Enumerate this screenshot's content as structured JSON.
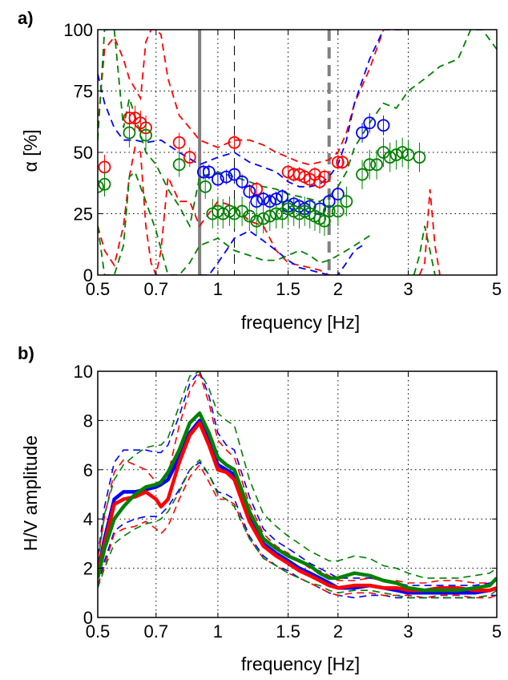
{
  "chart_data": [
    {
      "panel_label": "a)",
      "type": "line",
      "xscale": "log",
      "xlim": [
        0.5,
        5
      ],
      "xticks": [
        0.5,
        0.7,
        1,
        1.5,
        2,
        3,
        5
      ],
      "xtick_labels": [
        "0.5",
        "0.7",
        "1",
        "1.5",
        "2",
        "3",
        "5"
      ],
      "ylim": [
        0,
        100
      ],
      "yticks": [
        0,
        25,
        50,
        75,
        100
      ],
      "ytick_labels": [
        "0",
        "25",
        "50",
        "75",
        "100"
      ],
      "xlabel": "frequency [Hz]",
      "ylabel": "α [%]",
      "grid": true,
      "colors": {
        "red": "#ff0000",
        "blue": "#0000ff",
        "green": "#008000",
        "grey": "#808080"
      },
      "vertical_lines": [
        {
          "x": 0.9,
          "style": "solid",
          "color": "#808080"
        },
        {
          "x": 1.1,
          "style": "dashed",
          "color": "#000000"
        },
        {
          "x": 1.9,
          "style": "dashed",
          "color": "#808080"
        }
      ],
      "series": [
        {
          "color": "red",
          "marker": "circle",
          "x": [
            0.52,
            0.6,
            0.62,
            0.64,
            0.66,
            0.8,
            0.85,
            1.1,
            1.25,
            1.5,
            1.55,
            1.6,
            1.65,
            1.7,
            1.75,
            1.8,
            1.85,
            2.0,
            2.05
          ],
          "y": [
            44,
            64,
            64,
            62,
            60,
            54,
            48,
            54,
            35,
            42,
            41,
            41,
            40,
            39,
            41,
            38,
            40,
            46,
            46
          ],
          "err": [
            5,
            5,
            5,
            5,
            5,
            4,
            4,
            3,
            3,
            3,
            3,
            3,
            3,
            3,
            3,
            3,
            3,
            3,
            3
          ]
        },
        {
          "color": "blue",
          "marker": "circle",
          "x": [
            0.92,
            0.95,
            1.0,
            1.05,
            1.1,
            1.15,
            1.2,
            1.25,
            1.3,
            1.35,
            1.4,
            1.45,
            1.5,
            1.55,
            1.6,
            1.65,
            1.7,
            1.8,
            1.9,
            2.0,
            2.3,
            2.4,
            2.6
          ],
          "y": [
            42,
            42,
            39,
            40,
            41,
            38,
            34,
            30,
            31,
            30,
            31,
            32,
            28,
            29,
            28,
            27,
            28,
            27,
            30,
            33,
            58,
            62,
            61
          ],
          "err": [
            3,
            3,
            3,
            3,
            3,
            3,
            3,
            3,
            3,
            3,
            3,
            3,
            3,
            3,
            3,
            3,
            3,
            3,
            3,
            3,
            4,
            4,
            4
          ]
        },
        {
          "color": "green",
          "marker": "circle",
          "x": [
            0.5,
            0.52,
            0.6,
            0.66,
            0.8,
            0.93,
            0.97,
            1.0,
            1.03,
            1.07,
            1.1,
            1.15,
            1.2,
            1.25,
            1.3,
            1.35,
            1.4,
            1.45,
            1.5,
            1.55,
            1.6,
            1.65,
            1.7,
            1.75,
            1.8,
            1.85,
            1.9,
            2.0,
            2.1,
            2.3,
            2.4,
            2.5,
            2.6,
            2.7,
            2.8,
            2.9,
            3.0,
            3.2
          ],
          "y": [
            36,
            37,
            58,
            57,
            45,
            36,
            25,
            26,
            25,
            26,
            25,
            26,
            24,
            22,
            23,
            24,
            25,
            25,
            27,
            26,
            25,
            26,
            25,
            24,
            23,
            22,
            26,
            26,
            30,
            41,
            45,
            45,
            50,
            48,
            49,
            50,
            49,
            48
          ],
          "err": [
            5,
            5,
            6,
            6,
            5,
            5,
            6,
            6,
            6,
            6,
            6,
            6,
            6,
            6,
            6,
            6,
            6,
            6,
            6,
            6,
            6,
            6,
            6,
            6,
            6,
            6,
            6,
            6,
            6,
            6,
            6,
            6,
            6,
            6,
            6,
            6,
            6,
            6
          ]
        }
      ],
      "dashed_envelopes": [
        {
          "color": "red",
          "x": [
            0.5,
            0.52,
            0.55,
            0.58,
            0.6,
            0.62,
            0.64,
            0.66,
            0.68,
            0.7,
            0.72,
            0.75,
            0.8,
            0.85,
            0.9,
            1.0,
            1.1,
            1.2,
            1.3,
            1.4,
            1.5,
            1.6,
            1.7,
            1.8,
            1.9,
            2.0,
            2.1,
            2.2,
            2.4,
            2.6,
            2.8,
            3.0
          ],
          "y": [
            60,
            92,
            97,
            88,
            80,
            76,
            72,
            95,
            100,
            100,
            98,
            80,
            65,
            60,
            55,
            52,
            55,
            55,
            53,
            50,
            48,
            46,
            45,
            46,
            47,
            50,
            58,
            70,
            84,
            100,
            100,
            100
          ]
        },
        {
          "color": "red",
          "x": [
            0.5,
            0.52,
            0.55,
            0.58,
            0.6,
            0.62,
            0.64,
            0.66,
            0.68,
            0.7,
            0.72,
            0.75,
            0.8,
            0.85,
            0.9,
            1.0,
            1.1,
            1.2,
            1.3,
            1.4,
            1.5,
            1.6,
            1.7,
            1.8,
            1.9,
            2.0,
            2.05
          ],
          "y": [
            20,
            10,
            4,
            20,
            40,
            52,
            50,
            20,
            5,
            0,
            10,
            40,
            30,
            30,
            20,
            30,
            28,
            22,
            20,
            10,
            5,
            4,
            3,
            2,
            0,
            0,
            0
          ]
        },
        {
          "color": "red",
          "x": [
            3.2,
            3.3,
            3.4,
            3.5,
            3.6
          ],
          "y": [
            0,
            5,
            35,
            12,
            0
          ]
        },
        {
          "color": "blue",
          "x": [
            0.5,
            0.52,
            0.55,
            0.58,
            0.62,
            0.66,
            0.72,
            0.8,
            0.9,
            1.0,
            1.1,
            1.2,
            1.3,
            1.4,
            1.5,
            1.6,
            1.7,
            1.8,
            1.9,
            2.0,
            2.1,
            2.2,
            2.4,
            2.6,
            2.8,
            3.0
          ],
          "y": [
            82,
            70,
            60,
            55,
            55,
            54,
            55,
            50,
            45,
            48,
            50,
            46,
            44,
            42,
            38,
            36,
            36,
            37,
            40,
            45,
            55,
            70,
            88,
            100,
            100,
            100
          ]
        },
        {
          "color": "blue",
          "x": [
            0.9,
            0.95,
            1.0,
            1.05,
            1.1,
            1.2,
            1.3,
            1.4,
            1.5,
            1.6,
            1.7,
            1.8,
            1.9,
            2.0,
            2.1,
            2.2,
            2.3
          ],
          "y": [
            0,
            0,
            5,
            10,
            15,
            18,
            14,
            10,
            6,
            3,
            2,
            1,
            0,
            0,
            5,
            10,
            12
          ]
        },
        {
          "color": "green",
          "x": [
            0.5,
            0.52,
            0.55,
            0.58,
            0.6,
            0.62,
            0.66,
            0.7,
            0.75,
            0.8,
            0.85,
            0.9,
            1.0,
            1.1,
            1.2,
            1.3,
            1.4,
            1.5,
            1.6,
            1.7,
            1.8,
            1.9,
            2.0,
            2.1,
            2.2,
            2.4,
            2.6,
            2.8,
            3.0,
            3.3,
            3.6,
            4.0,
            4.3,
            4.6,
            5.0
          ],
          "y": [
            55,
            100,
            100,
            60,
            72,
            65,
            50,
            45,
            35,
            28,
            20,
            40,
            42,
            40,
            38,
            36,
            35,
            33,
            32,
            31,
            30,
            32,
            36,
            42,
            52,
            62,
            70,
            68,
            75,
            80,
            85,
            88,
            100,
            100,
            92
          ]
        },
        {
          "color": "green",
          "x": [
            0.5,
            0.52,
            0.55,
            0.58,
            0.6,
            0.62,
            0.66,
            0.7,
            0.75,
            0.8,
            0.85,
            0.9,
            1.0,
            1.1,
            1.2,
            1.3,
            1.4,
            1.5,
            1.6,
            1.7,
            1.8,
            1.9,
            2.0,
            2.1,
            2.2,
            2.4
          ],
          "y": [
            20,
            0,
            0,
            12,
            40,
            42,
            30,
            18,
            0,
            0,
            5,
            12,
            15,
            10,
            8,
            6,
            6,
            8,
            10,
            8,
            5,
            6,
            8,
            10,
            12,
            16
          ]
        },
        {
          "color": "green",
          "x": [
            3.1,
            3.2,
            3.3,
            3.4,
            3.5
          ],
          "y": [
            0,
            8,
            20,
            10,
            0
          ]
        }
      ]
    },
    {
      "panel_label": "b)",
      "type": "line",
      "xscale": "log",
      "xlim": [
        0.5,
        5
      ],
      "xticks": [
        0.5,
        0.7,
        1,
        1.5,
        2,
        3,
        5
      ],
      "xtick_labels": [
        "0.5",
        "0.7",
        "1",
        "1.5",
        "2",
        "3",
        "5"
      ],
      "ylim": [
        0,
        10
      ],
      "yticks": [
        0,
        2,
        4,
        6,
        8,
        10
      ],
      "ytick_labels": [
        "0",
        "2",
        "4",
        "6",
        "8",
        "10"
      ],
      "xlabel": "frequency [Hz]",
      "ylabel": "H/V amplitude",
      "grid": true,
      "colors": {
        "red": "#ff0000",
        "blue": "#0000ff",
        "green": "#008000"
      },
      "x": [
        0.5,
        0.52,
        0.55,
        0.58,
        0.62,
        0.66,
        0.7,
        0.72,
        0.75,
        0.8,
        0.85,
        0.9,
        0.95,
        1.0,
        1.05,
        1.1,
        1.2,
        1.3,
        1.4,
        1.5,
        1.6,
        1.7,
        1.8,
        1.9,
        2.0,
        2.2,
        2.4,
        2.6,
        2.8,
        3.0,
        3.3,
        3.6,
        4.0,
        4.4,
        4.8,
        5.0
      ],
      "series": [
        {
          "color": "blue",
          "width": "thick",
          "y": [
            1.8,
            3.2,
            4.8,
            5.1,
            5.1,
            5.2,
            5.3,
            5.4,
            5.6,
            6.5,
            7.5,
            8.0,
            7.2,
            6.2,
            6.0,
            5.8,
            4.0,
            3.0,
            2.6,
            2.3,
            2.0,
            1.8,
            1.6,
            1.4,
            1.2,
            1.2,
            1.3,
            1.2,
            1.1,
            1.0,
            1.0,
            1.0,
            1.0,
            1.0,
            1.1,
            1.2
          ]
        },
        {
          "color": "red",
          "width": "thick",
          "y": [
            1.8,
            3.0,
            4.6,
            4.8,
            4.9,
            5.1,
            4.8,
            4.5,
            4.8,
            6.3,
            7.4,
            7.9,
            7.0,
            6.0,
            5.9,
            5.6,
            3.9,
            2.9,
            2.5,
            2.2,
            1.9,
            1.7,
            1.5,
            1.3,
            1.2,
            1.3,
            1.3,
            1.2,
            1.2,
            1.1,
            1.1,
            1.2,
            1.2,
            1.1,
            1.1,
            1.2
          ]
        },
        {
          "color": "green",
          "width": "thick",
          "y": [
            1.6,
            2.8,
            4.0,
            4.5,
            5.0,
            5.3,
            5.4,
            5.5,
            5.9,
            6.8,
            7.9,
            8.3,
            7.5,
            6.5,
            6.2,
            6.0,
            4.3,
            3.2,
            2.8,
            2.5,
            2.3,
            2.1,
            1.8,
            1.6,
            1.6,
            1.8,
            1.7,
            1.5,
            1.4,
            1.2,
            1.1,
            1.1,
            1.1,
            1.2,
            1.3,
            1.6
          ]
        },
        {
          "color": "blue",
          "width": "dashed",
          "y": [
            2.5,
            4.5,
            6.3,
            6.8,
            6.8,
            6.8,
            6.7,
            6.7,
            7.0,
            8.2,
            9.5,
            10.0,
            9.0,
            7.5,
            7.0,
            6.8,
            4.9,
            3.6,
            3.1,
            2.8,
            2.5,
            2.2,
            2.0,
            1.8,
            1.6,
            1.6,
            1.6,
            1.5,
            1.4,
            1.3,
            1.3,
            1.3,
            1.3,
            1.3,
            1.4,
            1.5
          ]
        },
        {
          "color": "blue",
          "width": "dashed",
          "y": [
            1.3,
            2.3,
            3.5,
            3.8,
            4.0,
            4.1,
            4.1,
            4.2,
            4.5,
            5.2,
            6.0,
            6.3,
            5.8,
            5.1,
            5.0,
            4.8,
            3.3,
            2.5,
            2.1,
            1.9,
            1.6,
            1.4,
            1.2,
            1.0,
            0.9,
            0.8,
            0.9,
            0.9,
            0.8,
            0.8,
            0.8,
            0.8,
            0.8,
            0.8,
            0.9,
            0.9
          ]
        },
        {
          "color": "red",
          "width": "dashed",
          "y": [
            2.4,
            4.1,
            5.9,
            6.4,
            6.2,
            6.0,
            5.5,
            5.4,
            5.8,
            7.8,
            9.2,
            9.9,
            8.7,
            7.2,
            6.8,
            6.5,
            4.6,
            3.4,
            2.9,
            2.6,
            2.3,
            2.0,
            1.9,
            1.7,
            1.5,
            1.5,
            1.6,
            1.5,
            1.5,
            1.4,
            1.4,
            1.5,
            1.5,
            1.4,
            1.4,
            1.5
          ]
        },
        {
          "color": "red",
          "width": "dashed",
          "y": [
            1.3,
            2.1,
            3.4,
            3.6,
            3.7,
            3.9,
            3.6,
            3.4,
            3.7,
            4.8,
            5.7,
            6.2,
            5.5,
            4.8,
            4.8,
            4.6,
            3.2,
            2.4,
            2.1,
            1.8,
            1.6,
            1.4,
            1.2,
            1.0,
            0.9,
            1.0,
            1.0,
            0.9,
            0.9,
            0.9,
            0.8,
            0.9,
            0.9,
            0.8,
            0.8,
            0.9
          ]
        },
        {
          "color": "green",
          "width": "dashed",
          "y": [
            2.2,
            4.2,
            5.6,
            6.2,
            6.6,
            6.9,
            7.0,
            7.0,
            7.3,
            8.6,
            9.8,
            10.0,
            9.3,
            8.3,
            8.0,
            7.8,
            5.6,
            4.2,
            3.7,
            3.3,
            3.0,
            2.7,
            2.5,
            2.3,
            2.3,
            2.5,
            2.4,
            2.1,
            2.0,
            1.8,
            1.6,
            1.6,
            1.6,
            1.7,
            1.8,
            2.0
          ]
        },
        {
          "color": "green",
          "width": "dashed",
          "y": [
            1.2,
            2.0,
            3.0,
            3.3,
            3.6,
            3.8,
            3.9,
            4.0,
            4.3,
            5.1,
            6.0,
            6.4,
            5.8,
            5.0,
            4.8,
            4.5,
            3.2,
            2.4,
            2.1,
            1.8,
            1.6,
            1.4,
            1.3,
            1.1,
            1.0,
            1.1,
            1.1,
            1.0,
            0.9,
            0.8,
            0.8,
            0.8,
            0.8,
            0.8,
            0.9,
            1.1
          ]
        }
      ]
    }
  ]
}
